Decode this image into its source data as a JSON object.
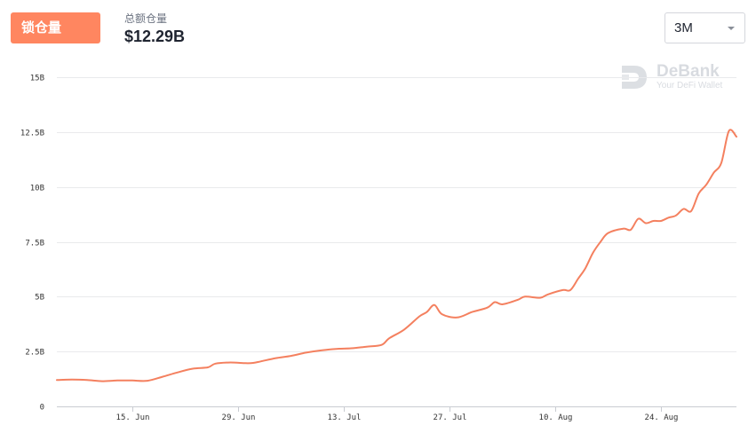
{
  "header": {
    "active_tab_label": "锁仓量",
    "tvl_label": "总额仓量",
    "tvl_value": "$12.29B",
    "range_value": "3M"
  },
  "watermark": {
    "name": "DeBank",
    "tagline": "Your DeFi Wallet"
  },
  "colors": {
    "accent": "#ff8660",
    "line": "#f4805f",
    "grid": "#e9eaec"
  },
  "icons": {
    "caret": "chevron-down-icon",
    "logo": "debank-logo-icon"
  },
  "chart_data": {
    "type": "line",
    "ylim": [
      0,
      15
    ],
    "y_ticks": [
      {
        "value": 0,
        "label": "0"
      },
      {
        "value": 2.5,
        "label": "2.5B"
      },
      {
        "value": 5,
        "label": "5B"
      },
      {
        "value": 7.5,
        "label": "7.5B"
      },
      {
        "value": 10,
        "label": "10B"
      },
      {
        "value": 12.5,
        "label": "12.5B"
      },
      {
        "value": 15,
        "label": "15B"
      }
    ],
    "x_range": [
      "2020-06-05",
      "2020-09-03"
    ],
    "x_ticks": [
      {
        "date": "2020-06-15",
        "label": "15. Jun"
      },
      {
        "date": "2020-06-29",
        "label": "29. Jun"
      },
      {
        "date": "2020-07-13",
        "label": "13. Jul"
      },
      {
        "date": "2020-07-27",
        "label": "27. Jul"
      },
      {
        "date": "2020-08-10",
        "label": "10. Aug"
      },
      {
        "date": "2020-08-24",
        "label": "24. Aug"
      }
    ],
    "grid": true,
    "legend": "none",
    "series": [
      {
        "values": [
          [
            "2020-06-05",
            1.2
          ],
          [
            "2020-06-07",
            1.22
          ],
          [
            "2020-06-09",
            1.2
          ],
          [
            "2020-06-11",
            1.15
          ],
          [
            "2020-06-13",
            1.18
          ],
          [
            "2020-06-15",
            1.18
          ],
          [
            "2020-06-17",
            1.17
          ],
          [
            "2020-06-19",
            1.35
          ],
          [
            "2020-06-21",
            1.55
          ],
          [
            "2020-06-23",
            1.72
          ],
          [
            "2020-06-25",
            1.78
          ],
          [
            "2020-06-26",
            1.95
          ],
          [
            "2020-06-28",
            2.0
          ],
          [
            "2020-06-30",
            1.97
          ],
          [
            "2020-07-01",
            1.98
          ],
          [
            "2020-07-02",
            2.05
          ],
          [
            "2020-07-04",
            2.2
          ],
          [
            "2020-07-06",
            2.3
          ],
          [
            "2020-07-08",
            2.45
          ],
          [
            "2020-07-10",
            2.55
          ],
          [
            "2020-07-12",
            2.62
          ],
          [
            "2020-07-14",
            2.65
          ],
          [
            "2020-07-16",
            2.72
          ],
          [
            "2020-07-18",
            2.8
          ],
          [
            "2020-07-19",
            3.1
          ],
          [
            "2020-07-21",
            3.5
          ],
          [
            "2020-07-23",
            4.1
          ],
          [
            "2020-07-24",
            4.3
          ],
          [
            "2020-07-25",
            4.62
          ],
          [
            "2020-07-26",
            4.2
          ],
          [
            "2020-07-28",
            4.05
          ],
          [
            "2020-07-30",
            4.3
          ],
          [
            "2020-08-01",
            4.5
          ],
          [
            "2020-08-02",
            4.75
          ],
          [
            "2020-08-03",
            4.65
          ],
          [
            "2020-08-05",
            4.85
          ],
          [
            "2020-08-06",
            5.0
          ],
          [
            "2020-08-08",
            4.95
          ],
          [
            "2020-08-09",
            5.1
          ],
          [
            "2020-08-11",
            5.3
          ],
          [
            "2020-08-12",
            5.3
          ],
          [
            "2020-08-13",
            5.8
          ],
          [
            "2020-08-14",
            6.3
          ],
          [
            "2020-08-15",
            7.0
          ],
          [
            "2020-08-16",
            7.5
          ],
          [
            "2020-08-17",
            7.9
          ],
          [
            "2020-08-19",
            8.1
          ],
          [
            "2020-08-20",
            8.05
          ],
          [
            "2020-08-21",
            8.55
          ],
          [
            "2020-08-22",
            8.35
          ],
          [
            "2020-08-23",
            8.45
          ],
          [
            "2020-08-24",
            8.45
          ],
          [
            "2020-08-25",
            8.6
          ],
          [
            "2020-08-26",
            8.7
          ],
          [
            "2020-08-27",
            9.0
          ],
          [
            "2020-08-28",
            8.9
          ],
          [
            "2020-08-29",
            9.7
          ],
          [
            "2020-08-30",
            10.1
          ],
          [
            "2020-08-31",
            10.65
          ],
          [
            "2020-09-01",
            11.1
          ],
          [
            "2020-09-02",
            12.55
          ],
          [
            "2020-09-03",
            12.29
          ]
        ]
      }
    ]
  }
}
